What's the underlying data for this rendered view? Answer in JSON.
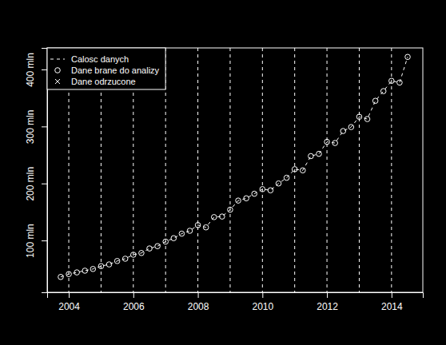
{
  "chart_data": {
    "type": "line",
    "x": [
      2003.75,
      2004,
      2004.25,
      2004.5,
      2004.75,
      2005,
      2005.25,
      2005.5,
      2005.75,
      2006,
      2006.25,
      2006.5,
      2006.75,
      2007,
      2007.25,
      2007.5,
      2007.75,
      2008,
      2008.25,
      2008.5,
      2008.75,
      2009,
      2009.25,
      2009.5,
      2009.75,
      2010,
      2010.25,
      2010.5,
      2010.75,
      2011,
      2011.25,
      2011.5,
      2011.75,
      2012,
      2012.25,
      2012.5,
      2012.75,
      2013,
      2013.25,
      2013.5,
      2013.75,
      2014,
      2014.25,
      2014.5
    ],
    "series": [
      {
        "name": "Calosc danych",
        "type": "line",
        "line_style": "dashed",
        "color": "#ffffff",
        "values": [
          36,
          41,
          44,
          47,
          50,
          55,
          58,
          64,
          68,
          75,
          78,
          86,
          90,
          98,
          104,
          112,
          117,
          127,
          123,
          141,
          142,
          154,
          170,
          174,
          182,
          190,
          188,
          200,
          210,
          225,
          223,
          248,
          252,
          273,
          271,
          292,
          299,
          317,
          313,
          345,
          362,
          380,
          377,
          422
        ]
      },
      {
        "name": "Dane brane do analizy",
        "type": "scatter",
        "marker": "circle",
        "color": "#ffffff",
        "values": [
          36,
          41,
          44,
          47,
          50,
          55,
          58,
          64,
          68,
          75,
          78,
          86,
          90,
          98,
          104,
          112,
          117,
          127,
          123,
          141,
          142,
          154,
          170,
          174,
          182,
          190,
          188,
          200,
          210,
          225,
          223,
          248,
          252,
          273,
          271,
          292,
          299,
          317,
          313,
          345,
          362,
          380,
          377,
          422
        ]
      },
      {
        "name": "Dane odrzucone",
        "type": "scatter",
        "marker": "x",
        "color": "#ffffff",
        "values": [
          null,
          null,
          null,
          null,
          null,
          null,
          null,
          null,
          null,
          null,
          null,
          null,
          null,
          null,
          null,
          null,
          null,
          null,
          null,
          null,
          null,
          null,
          null,
          null,
          null,
          null,
          null,
          null,
          null,
          null,
          null,
          null,
          null,
          null,
          null,
          null,
          null,
          null,
          null,
          null,
          null,
          null,
          null,
          null
        ]
      }
    ],
    "xlim": [
      2003.33,
      2014.97
    ],
    "xticks": [
      2004,
      2006,
      2008,
      2010,
      2012,
      2014
    ],
    "ylim": [
      9.1,
      437.8
    ],
    "yticks": [
      {
        "value": 100,
        "label": "100 mln"
      },
      {
        "value": 200,
        "label": "200 mln"
      },
      {
        "value": 300,
        "label": "300 mln"
      },
      {
        "value": 400,
        "label": "400 mln"
      }
    ],
    "vlines": [
      2004,
      2005,
      2006,
      2007,
      2008,
      2009,
      2010,
      2011,
      2012,
      2013,
      2014
    ],
    "legend": "top-left"
  }
}
